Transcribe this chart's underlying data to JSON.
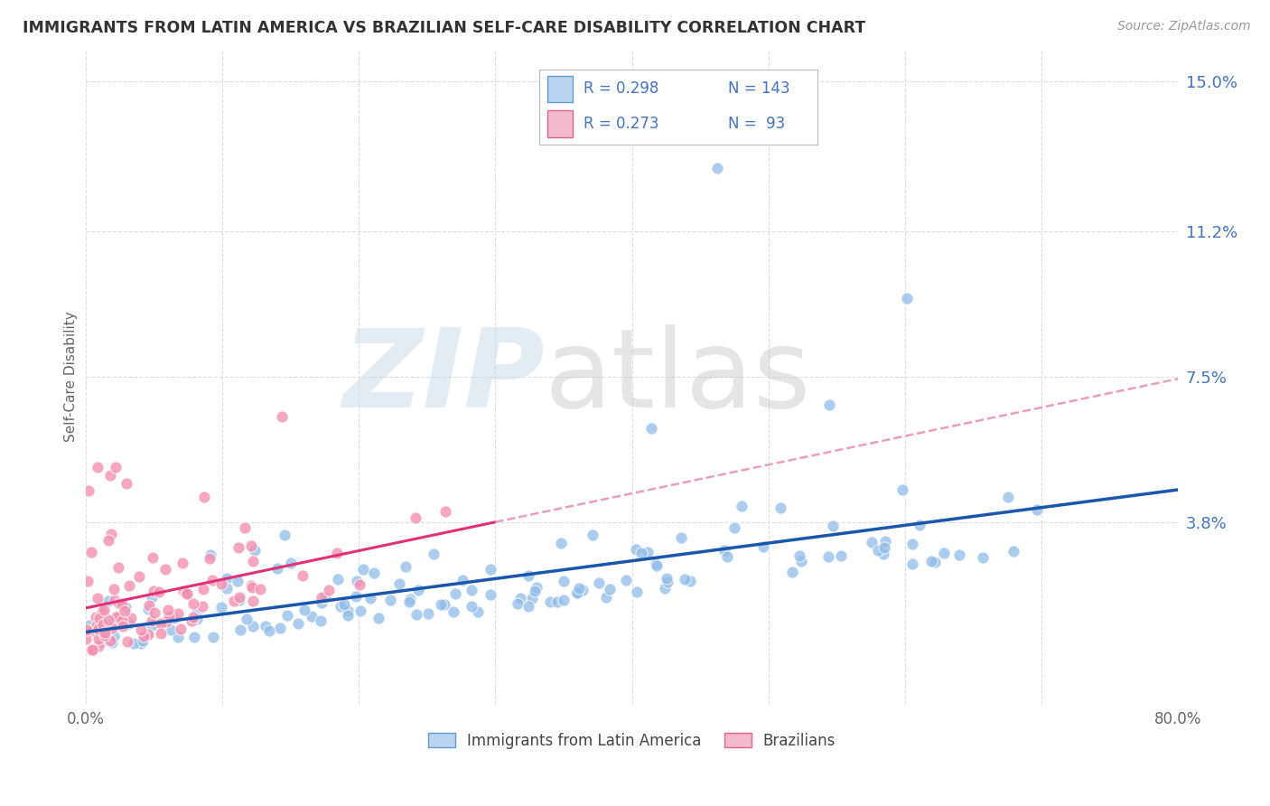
{
  "title": "IMMIGRANTS FROM LATIN AMERICA VS BRAZILIAN SELF-CARE DISABILITY CORRELATION CHART",
  "source": "Source: ZipAtlas.com",
  "ylabel": "Self-Care Disability",
  "xlim": [
    0.0,
    0.8
  ],
  "ylim": [
    -0.008,
    0.158
  ],
  "yticks": [
    0.038,
    0.075,
    0.112,
    0.15
  ],
  "ytick_labels": [
    "3.8%",
    "7.5%",
    "11.2%",
    "15.0%"
  ],
  "xticks": [
    0.0,
    0.1,
    0.2,
    0.3,
    0.4,
    0.5,
    0.6,
    0.7,
    0.8
  ],
  "xtick_labels": [
    "0.0%",
    "",
    "",
    "",
    "",
    "",
    "",
    "",
    "80.0%"
  ],
  "blue_color": "#90bce8",
  "pink_color": "#f590b0",
  "trend_blue_color": "#1a56aa",
  "trend_pink_color": "#e0307a",
  "trend_pink_dash_color": "#e8a0c0",
  "watermark_zip_color": "#c8d8e8",
  "watermark_atlas_color": "#c0c0c0",
  "grid_color": "#dddddd",
  "background_color": "#ffffff",
  "title_color": "#333333",
  "source_color": "#999999",
  "ylabel_color": "#666666",
  "ytick_color": "#4472c4",
  "xtick_color": "#666666",
  "legend_border_color": "#bbbbbb",
  "legend_blue_fill": "#b8d4f0",
  "legend_blue_border": "#6699cc",
  "legend_pink_fill": "#f4b8cc",
  "legend_pink_border": "#dd6688",
  "legend_text_color": "#000000",
  "legend_value_color": "#4472c4",
  "R_blue": 0.298,
  "N_blue": 143,
  "R_pink": 0.273,
  "N_pink": 93
}
